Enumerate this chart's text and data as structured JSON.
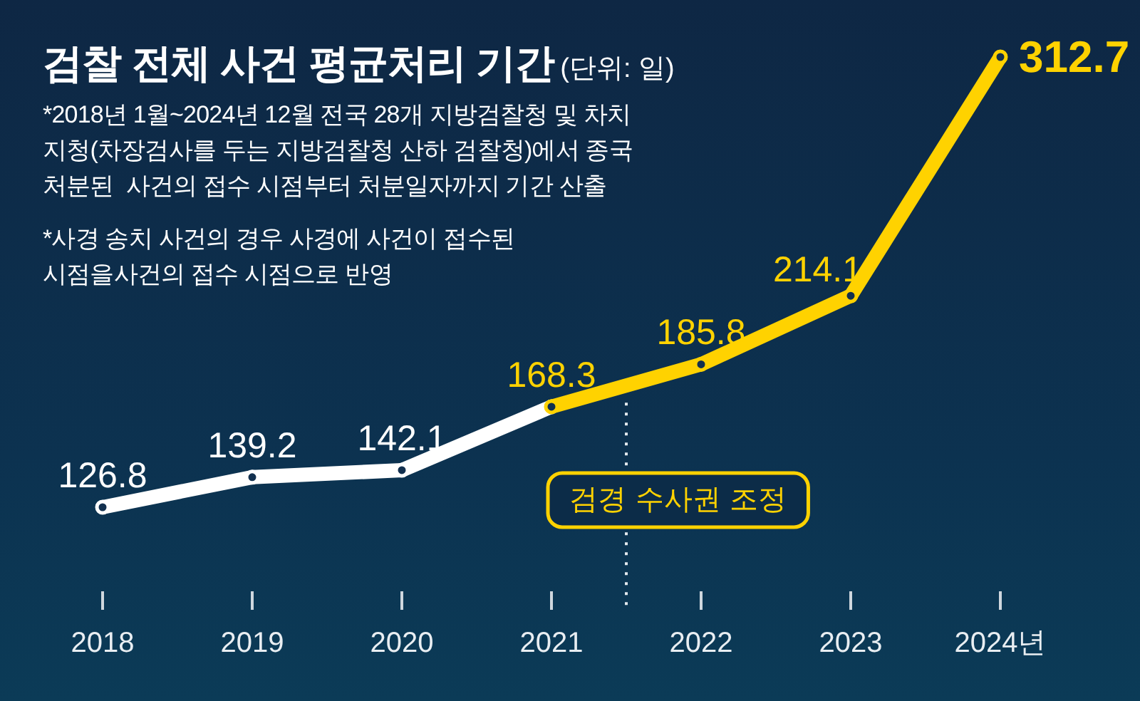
{
  "chart_data": {
    "type": "line",
    "title": "검찰 전체 사건 평균처리 기간",
    "subtitle": "(단위: 일)",
    "annotations": [
      "*2018년 1월~2024년 12월 전국 28개 지방검찰청 및 차치 지청(차장검사를 두는 지방검찰청 산하 검찰청)에서 종국 처분된  사건의 접수 시점부터 처분일자까지 기간 산출",
      "*사경 송치 사건의 경우 사경에 사건이 접수된 시점을사건의 접수 시점으로 반영"
    ],
    "x": [
      2018,
      2019,
      2020,
      2021,
      2022,
      2023,
      2024
    ],
    "xlim": [
      2018,
      2024
    ],
    "xticks": [
      2018,
      2019,
      2020,
      2021,
      2022,
      2023,
      {
        "value": 2024,
        "label": "2024년"
      }
    ],
    "tick_labels": "x",
    "series": [
      {
        "color": "#ffffff",
        "values": [
          126.8,
          139.2,
          142.1,
          168.3,
          null,
          null,
          null
        ],
        "value_labels": [
          "126.8",
          "139.2",
          "142.1",
          null,
          null,
          null,
          null
        ]
      },
      {
        "color": "#ffd200",
        "values": [
          null,
          null,
          null,
          168.3,
          185.8,
          214.1,
          312.7
        ],
        "value_labels": [
          null,
          null,
          null,
          "168.3",
          "185.8",
          "214.1",
          "312.7"
        ]
      }
    ],
    "marker": "circle",
    "line_style": "solid",
    "ref_lines": [
      {
        "axis": "x",
        "value": 2021.5,
        "label": "검경 수사권 조정",
        "line_style": "dotted"
      }
    ]
  }
}
